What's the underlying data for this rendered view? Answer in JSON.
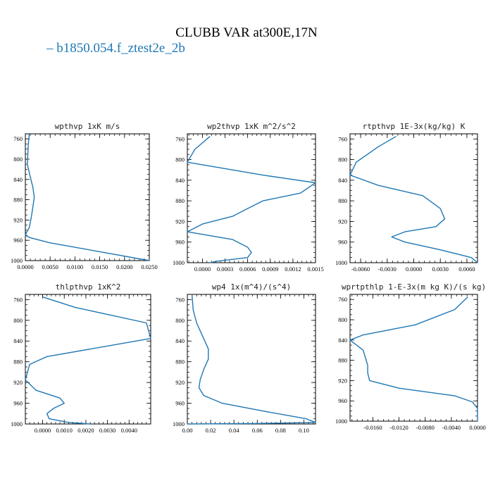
{
  "title": "CLUBB VAR at300E,17N",
  "legend": {
    "label": "b1850.054.f_ztest2e_2b",
    "color": "#1f77b4"
  },
  "chart_data": [
    {
      "type": "line",
      "title": "wpthvp  1xK m/s",
      "xlim": [
        0.0,
        0.025
      ],
      "ylim": [
        1000,
        750
      ],
      "xticks": [
        0.0,
        0.005,
        0.01,
        0.015,
        0.02,
        0.025
      ],
      "xtick_labels": [
        "0.0000",
        "0.0050",
        "0.0100",
        "0.0150",
        "0.0200",
        "0.0250"
      ],
      "yticks": [
        760,
        800,
        840,
        880,
        920,
        960,
        1000
      ],
      "series": [
        {
          "x": [
            0.0008,
            0.0006,
            0.0005,
            0.0004,
            0.001,
            0.0015,
            0.0018,
            0.0015,
            0.0012,
            0.0008,
            0.0002,
            0.0,
            0.001,
            0.005,
            0.025
          ],
          "y": [
            750,
            770,
            790,
            810,
            835,
            855,
            875,
            895,
            915,
            935,
            945,
            950,
            955,
            965,
            1000
          ]
        }
      ]
    },
    {
      "type": "line",
      "title": "wp2thvp  1xK m^2/s^2",
      "xlim": [
        -0.0002,
        0.0015
      ],
      "ylim": [
        1000,
        750
      ],
      "xticks": [
        0.0,
        0.0003,
        0.0006,
        0.0009,
        0.0012,
        0.0015
      ],
      "xtick_labels": [
        "0.0000",
        "0.0003",
        "0.0006",
        "0.0009",
        "0.0012",
        "0.0015"
      ],
      "yticks": [
        760,
        800,
        840,
        880,
        920,
        960,
        1000
      ],
      "series": [
        {
          "x": [
            0.0001,
            -0.0001,
            -0.0002,
            0.0008,
            0.0015,
            0.0013,
            0.0008,
            0.0006,
            0.0004,
            0.0,
            -0.0002,
            0.0004,
            0.0006,
            0.00065,
            0.0006,
            0.0002,
            0.0001
          ],
          "y": [
            755,
            780,
            805,
            830,
            845,
            865,
            880,
            895,
            910,
            925,
            940,
            955,
            970,
            980,
            990,
            997,
            1000
          ]
        }
      ]
    },
    {
      "type": "line",
      "title": "rtpthvp  1E-3x(kg/kg) K",
      "xlim": [
        -0.0072,
        0.0072
      ],
      "ylim": [
        1000,
        750
      ],
      "xticks": [
        -0.006,
        -0.003,
        0.0,
        0.003,
        0.006
      ],
      "xtick_labels": [
        "-0.0060",
        "-0.0030",
        "0.0000",
        "0.0030",
        "0.0060"
      ],
      "yticks": [
        760,
        800,
        840,
        880,
        920,
        960,
        1000
      ],
      "series": [
        {
          "x": [
            -0.002,
            -0.004,
            -0.0065,
            -0.0072,
            -0.004,
            0.001,
            0.003,
            0.0035,
            0.0025,
            -0.001,
            -0.0025,
            -0.001,
            0.003,
            0.0065,
            0.0072
          ],
          "y": [
            755,
            775,
            805,
            830,
            850,
            870,
            895,
            915,
            930,
            940,
            950,
            960,
            975,
            990,
            1000
          ]
        }
      ]
    },
    {
      "type": "line",
      "title": "thlpthvp  1xK^2",
      "xlim": [
        -0.0008,
        0.005
      ],
      "ylim": [
        1000,
        750
      ],
      "xticks": [
        0.0,
        0.001,
        0.002,
        0.003,
        0.004
      ],
      "xtick_labels": [
        "0.0000",
        "0.0010",
        "0.0020",
        "0.0030",
        "0.0040"
      ],
      "yticks": [
        760,
        800,
        840,
        880,
        920,
        960,
        1000
      ],
      "series": [
        {
          "x": [
            0.0,
            0.0015,
            0.0048,
            0.005,
            0.0002,
            -0.0006,
            -0.0008,
            -0.0003,
            0.0008,
            0.001,
            0.0005,
            0.0002,
            0.0003,
            0.0012,
            0.0022
          ],
          "y": [
            755,
            775,
            805,
            835,
            870,
            885,
            915,
            935,
            950,
            960,
            970,
            980,
            990,
            997,
            1000
          ]
        }
      ]
    },
    {
      "type": "line",
      "title": "wp4  1x(m^4)/(s^4)",
      "xlim": [
        0.0,
        0.11
      ],
      "ylim": [
        1000,
        750
      ],
      "xticks": [
        0.0,
        0.02,
        0.04,
        0.06,
        0.08,
        0.1
      ],
      "xtick_labels": [
        "0.00",
        "0.02",
        "0.04",
        "0.06",
        "0.08",
        "0.10"
      ],
      "yticks": [
        760,
        800,
        840,
        880,
        920,
        960,
        1000
      ],
      "series": [
        {
          "x": [
            0.004,
            0.005,
            0.008,
            0.013,
            0.018,
            0.018,
            0.014,
            0.011,
            0.01,
            0.014,
            0.03,
            0.065,
            0.102,
            0.11,
            0.06,
            0.0
          ],
          "y": [
            750,
            780,
            805,
            830,
            855,
            875,
            895,
            915,
            930,
            945,
            960,
            975,
            990,
            997,
            999,
            1000
          ]
        }
      ]
    },
    {
      "type": "line",
      "title": "wprtpthlp  1-E-3x(m kg K)/(s kg)",
      "xlim": [
        -0.0195,
        0.0
      ],
      "ylim": [
        1000,
        750
      ],
      "xticks": [
        -0.016,
        -0.012,
        -0.008,
        -0.004,
        0.0
      ],
      "xtick_labels": [
        "-0.0160",
        "-0.0120",
        "-0.0080",
        "-0.0040",
        "0.0000"
      ],
      "yticks": [
        760,
        800,
        840,
        880,
        920,
        960,
        1000
      ],
      "series": [
        {
          "x": [
            -0.0015,
            -0.0035,
            -0.0095,
            -0.0175,
            -0.0195,
            -0.0175,
            -0.0168,
            -0.0168,
            -0.0165,
            -0.012,
            -0.0035,
            -0.0008,
            0.0,
            0.0
          ],
          "y": [
            755,
            780,
            810,
            830,
            840,
            860,
            890,
            905,
            920,
            935,
            950,
            962,
            975,
            1000
          ]
        }
      ]
    }
  ]
}
